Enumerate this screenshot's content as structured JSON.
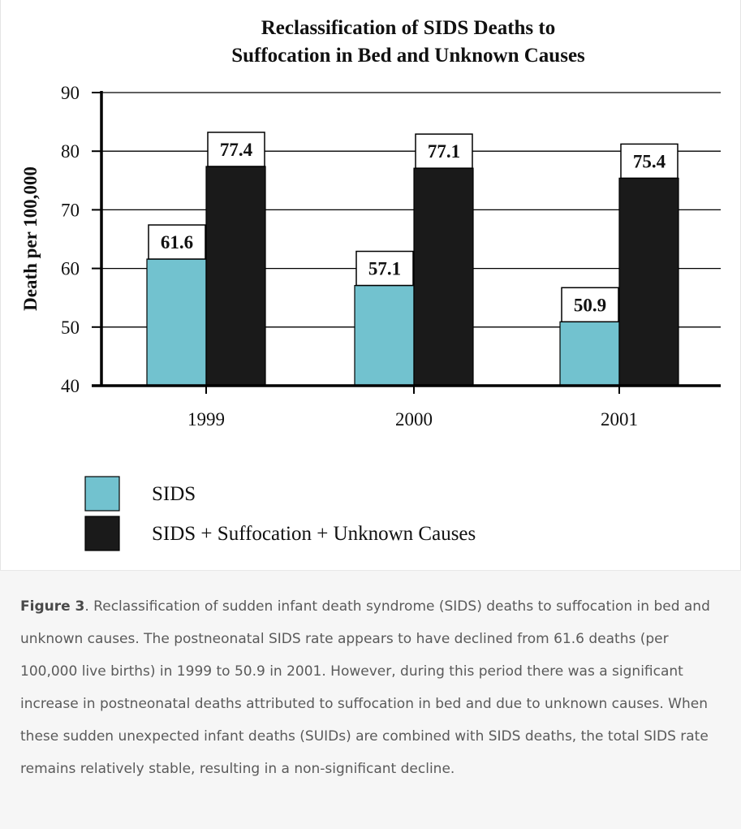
{
  "chart_data": {
    "type": "bar",
    "title_lines": [
      "Reclassification of SIDS Deaths to",
      "Suffocation in Bed and Unknown Causes"
    ],
    "ylabel": "Death per 100,000",
    "xlabel": "",
    "categories": [
      "1999",
      "2000",
      "2001"
    ],
    "series": [
      {
        "name": "SIDS",
        "values": [
          61.6,
          57.1,
          50.9
        ]
      },
      {
        "name": "SIDS + Suffocation + Unknown Causes",
        "values": [
          77.4,
          77.1,
          75.4
        ]
      }
    ],
    "data_labels": [
      [
        "61.6",
        "57.1",
        "50.9"
      ],
      [
        "77.4",
        "77.1",
        "75.4"
      ]
    ],
    "ylim": [
      40,
      90
    ],
    "yticks": [
      40,
      50,
      60,
      70,
      80,
      90
    ],
    "ytick_labels": [
      "40",
      "50",
      "60",
      "70",
      "80",
      "90"
    ],
    "grid": true,
    "legend_placement": "bottom-left",
    "colors": [
      "#72c2cf",
      "#1a1a1a"
    ]
  },
  "caption": {
    "label": "Figure 3",
    "text": ". Reclassification of sudden infant death syndrome (SIDS) deaths to suffocation in bed and unknown causes. The postneonatal SIDS rate appears to have declined from 61.6 deaths (per 100,000 live births) in 1999 to 50.9 in 2001. However, during this period there was a significant increase in postneonatal deaths attributed to suffocation in bed and due to unknown causes. When these sudden unexpected infant deaths (SUIDs) are combined with SIDS deaths, the total SIDS rate remains relatively stable, resulting in a non-significant decline."
  }
}
